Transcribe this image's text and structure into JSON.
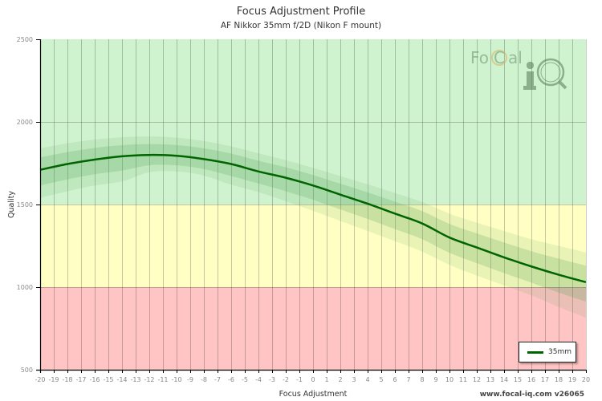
{
  "header": {
    "title": "Focus Adjustment Profile",
    "subtitle": "AF Nikkor 35mm f/2D (Nikon F mount)"
  },
  "footer": {
    "watermark": "www.focal-iq.com  v26065"
  },
  "logo": {
    "text_left": "FoCal",
    "text_right": "iQ"
  },
  "legend": {
    "items": [
      {
        "label": "35mm",
        "color": "#006400"
      }
    ]
  },
  "colors": {
    "zone_good": "#cff3cf",
    "zone_ok": "#ffffc4",
    "zone_bad": "#ffc4c4",
    "curve": "#006400",
    "band_inner": "rgba(80,160,80,0.22)",
    "band_outer": "rgba(80,160,80,0.12)",
    "grid": "rgba(0,0,0,0.22)"
  },
  "chart_data": {
    "type": "line",
    "title": "Focus Adjustment Profile",
    "subtitle": "AF Nikkor 35mm f/2D (Nikon F mount)",
    "xlabel": "Focus Adjustment",
    "ylabel": "Quality",
    "xlim": [
      -20,
      20
    ],
    "ylim": [
      500,
      2500
    ],
    "x_ticks": [
      -20,
      -19,
      -18,
      -17,
      -16,
      -15,
      -14,
      -13,
      -12,
      -11,
      -10,
      -9,
      -8,
      -7,
      -6,
      -5,
      -4,
      -3,
      -2,
      -1,
      0,
      1,
      2,
      3,
      4,
      5,
      6,
      7,
      8,
      9,
      10,
      11,
      12,
      13,
      14,
      15,
      16,
      17,
      18,
      19,
      20
    ],
    "y_ticks": [
      500,
      1000,
      1500,
      2000,
      2500
    ],
    "grid": true,
    "legend_position": "bottom-right",
    "zones": [
      {
        "name": "good",
        "from": 1500,
        "to": 2500,
        "color": "#cff3cf"
      },
      {
        "name": "ok",
        "from": 1000,
        "to": 1500,
        "color": "#ffffc4"
      },
      {
        "name": "bad",
        "from": 500,
        "to": 1000,
        "color": "#ffc4c4"
      }
    ],
    "series": [
      {
        "name": "35mm",
        "x": [
          -20,
          -18,
          -16,
          -14,
          -12,
          -10,
          -8,
          -6,
          -4,
          -2,
          0,
          2,
          4,
          6,
          8,
          10,
          12,
          14,
          16,
          18,
          20
        ],
        "values": [
          1710,
          1745,
          1772,
          1792,
          1800,
          1795,
          1775,
          1745,
          1700,
          1662,
          1615,
          1560,
          1505,
          1445,
          1385,
          1300,
          1240,
          1180,
          1125,
          1075,
          1030
        ],
        "band_upper": [
          1840,
          1870,
          1893,
          1907,
          1912,
          1905,
          1885,
          1852,
          1810,
          1768,
          1722,
          1672,
          1622,
          1570,
          1515,
          1445,
          1390,
          1340,
          1290,
          1250,
          1210
        ],
        "band_lower": [
          1540,
          1580,
          1615,
          1640,
          1695,
          1700,
          1675,
          1620,
          1575,
          1520,
          1462,
          1400,
          1340,
          1278,
          1215,
          1135,
          1070,
          1010,
          950,
          880,
          815
        ]
      }
    ]
  }
}
